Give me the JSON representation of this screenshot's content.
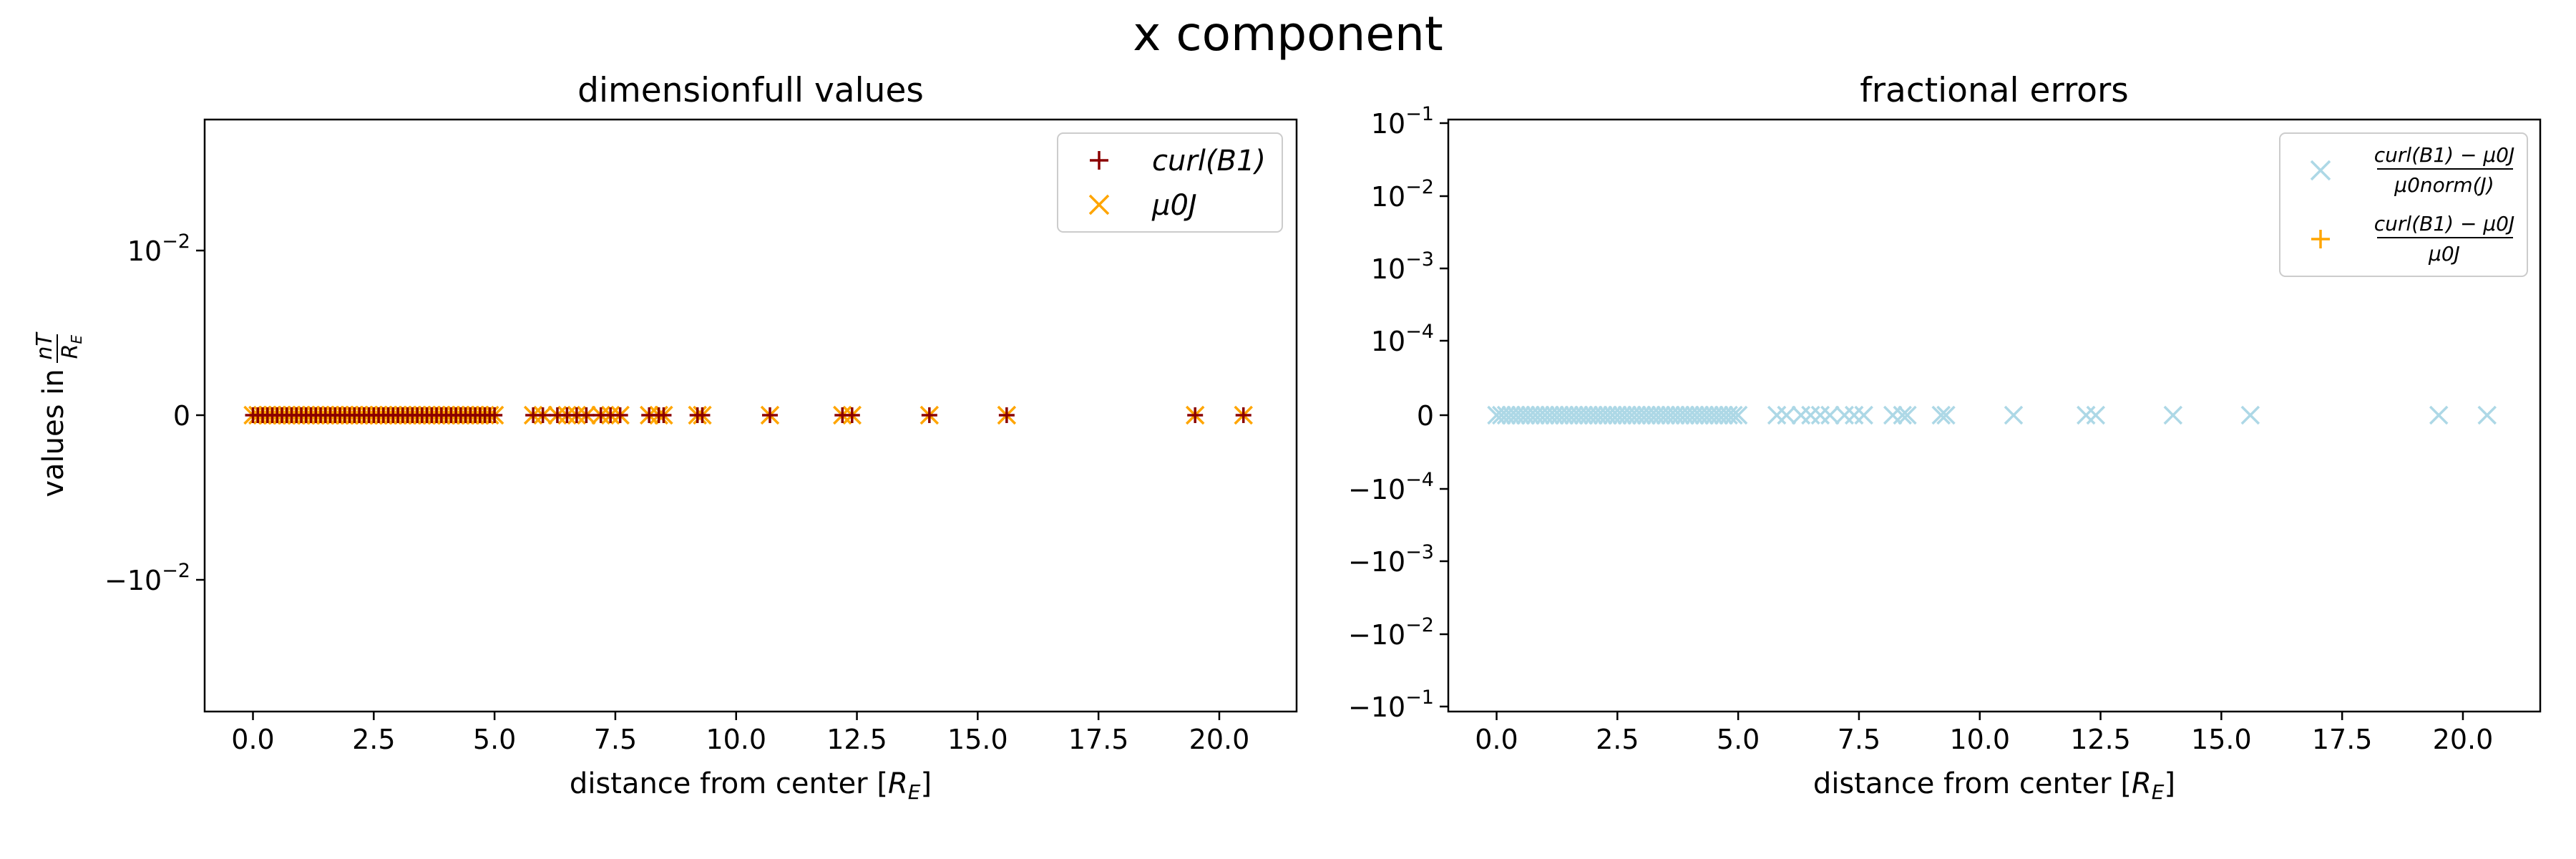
{
  "figure": {
    "suptitle": "x component"
  },
  "colors": {
    "curl": "#8b0000",
    "mu0J": "#ffa500",
    "frac_norm": "#add8e6",
    "frac_rel": "#ffa500"
  },
  "chart_data": [
    {
      "type": "scatter",
      "title": "dimensionfull values",
      "xlabel": "distance from center [R_E]",
      "ylabel": "values in nT/R_E",
      "xlim": [
        -1.0,
        21.6
      ],
      "ylim": [
        -0.018,
        0.018
      ],
      "yscale": "symlog",
      "x_ticks": [
        "0.0",
        "2.5",
        "5.0",
        "7.5",
        "10.0",
        "12.5",
        "15.0",
        "17.5",
        "20.0"
      ],
      "y_ticks": [
        "10^-2",
        "0",
        "-10^-2"
      ],
      "legend": {
        "position": "upper right",
        "entries": [
          "curl(B1)",
          "μ0J"
        ]
      },
      "series": [
        {
          "name": "curl(B1)",
          "marker": "plus",
          "x": [
            0.0,
            0.1,
            0.2,
            0.3,
            0.4,
            0.5,
            0.6,
            0.7,
            0.8,
            0.9,
            1.0,
            1.1,
            1.2,
            1.3,
            1.4,
            1.5,
            1.6,
            1.7,
            1.8,
            1.9,
            2.0,
            2.1,
            2.2,
            2.3,
            2.4,
            2.5,
            2.6,
            2.7,
            2.8,
            2.9,
            3.0,
            3.1,
            3.2,
            3.3,
            3.4,
            3.5,
            3.6,
            3.7,
            3.8,
            3.9,
            4.0,
            4.1,
            4.2,
            4.3,
            4.4,
            4.5,
            4.6,
            4.7,
            4.8,
            4.9,
            5.0,
            5.8,
            6.0,
            6.3,
            6.5,
            6.7,
            6.9,
            7.2,
            7.4,
            7.6,
            8.2,
            8.4,
            8.5,
            9.2,
            9.3,
            10.7,
            12.2,
            12.4,
            14.0,
            15.6,
            19.5,
            20.5
          ],
          "y": [
            0,
            0,
            0,
            0,
            0,
            0,
            0,
            0,
            0,
            0,
            0,
            0,
            0,
            0,
            0,
            0,
            0,
            0,
            0,
            0,
            0,
            0,
            0,
            0,
            0,
            0,
            0,
            0,
            0,
            0,
            0,
            0,
            0,
            0,
            0,
            0,
            0,
            0,
            0,
            0,
            0,
            0,
            0,
            0,
            0,
            0,
            0,
            0,
            0,
            0,
            0,
            0,
            0,
            0,
            0,
            0,
            0,
            0,
            0,
            0,
            0,
            0,
            0,
            0,
            0,
            0,
            0,
            0,
            0,
            0,
            0,
            0
          ]
        },
        {
          "name": "μ0J",
          "marker": "x",
          "x": [
            0.0,
            0.1,
            0.2,
            0.3,
            0.4,
            0.5,
            0.6,
            0.7,
            0.8,
            0.9,
            1.0,
            1.1,
            1.2,
            1.3,
            1.4,
            1.5,
            1.6,
            1.7,
            1.8,
            1.9,
            2.0,
            2.1,
            2.2,
            2.3,
            2.4,
            2.5,
            2.6,
            2.7,
            2.8,
            2.9,
            3.0,
            3.1,
            3.2,
            3.3,
            3.4,
            3.5,
            3.6,
            3.7,
            3.8,
            3.9,
            4.0,
            4.1,
            4.2,
            4.3,
            4.4,
            4.5,
            4.6,
            4.7,
            4.8,
            4.9,
            5.0,
            5.8,
            6.0,
            6.3,
            6.5,
            6.7,
            6.9,
            7.2,
            7.4,
            7.6,
            8.2,
            8.4,
            8.5,
            9.2,
            9.3,
            10.7,
            12.2,
            12.4,
            14.0,
            15.6,
            19.5,
            20.5
          ],
          "y": [
            0,
            0,
            0,
            0,
            0,
            0,
            0,
            0,
            0,
            0,
            0,
            0,
            0,
            0,
            0,
            0,
            0,
            0,
            0,
            0,
            0,
            0,
            0,
            0,
            0,
            0,
            0,
            0,
            0,
            0,
            0,
            0,
            0,
            0,
            0,
            0,
            0,
            0,
            0,
            0,
            0,
            0,
            0,
            0,
            0,
            0,
            0,
            0,
            0,
            0,
            0,
            0,
            0,
            0,
            0,
            0,
            0,
            0,
            0,
            0,
            0,
            0,
            0,
            0,
            0,
            0,
            0,
            0,
            0,
            0,
            0,
            0
          ]
        }
      ]
    },
    {
      "type": "scatter",
      "title": "fractional errors",
      "xlabel": "distance from center [R_E]",
      "xlim": [
        -1.0,
        21.6
      ],
      "yscale": "symlog",
      "y_ticks": [
        "10^-1",
        "10^-2",
        "10^-3",
        "10^-4",
        "0",
        "-10^-4",
        "-10^-3",
        "-10^-2",
        "-10^-1"
      ],
      "x_ticks": [
        "0.0",
        "2.5",
        "5.0",
        "7.5",
        "10.0",
        "12.5",
        "15.0",
        "17.5",
        "20.0"
      ],
      "legend": {
        "position": "upper right",
        "entries": [
          "(curl(B1) − μ0J) / (μ0norm(J))",
          "(curl(B1) − μ0J) / (μ0J)"
        ]
      },
      "series": [
        {
          "name": "(curl(B1) − μ0J) / (μ0norm(J))",
          "marker": "x",
          "x": [
            0.0,
            0.1,
            0.2,
            0.3,
            0.4,
            0.5,
            0.6,
            0.7,
            0.8,
            0.9,
            1.0,
            1.1,
            1.2,
            1.3,
            1.4,
            1.5,
            1.6,
            1.7,
            1.8,
            1.9,
            2.0,
            2.1,
            2.2,
            2.3,
            2.4,
            2.5,
            2.6,
            2.7,
            2.8,
            2.9,
            3.0,
            3.1,
            3.2,
            3.3,
            3.4,
            3.5,
            3.6,
            3.7,
            3.8,
            3.9,
            4.0,
            4.1,
            4.2,
            4.3,
            4.4,
            4.5,
            4.6,
            4.7,
            4.8,
            4.9,
            5.0,
            5.8,
            6.0,
            6.3,
            6.5,
            6.7,
            6.9,
            7.2,
            7.4,
            7.6,
            8.2,
            8.4,
            8.5,
            9.2,
            9.3,
            10.7,
            12.2,
            12.4,
            14.0,
            15.6,
            19.5,
            20.5
          ],
          "y": [
            0,
            0,
            0,
            0,
            0,
            0,
            0,
            0,
            0,
            0,
            0,
            0,
            0,
            0,
            0,
            0,
            0,
            0,
            0,
            0,
            0,
            0,
            0,
            0,
            0,
            0,
            0,
            0,
            0,
            0,
            0,
            0,
            0,
            0,
            0,
            0,
            0,
            0,
            0,
            0,
            0,
            0,
            0,
            0,
            0,
            0,
            0,
            0,
            0,
            0,
            0,
            0,
            0,
            0,
            0,
            0,
            0,
            0,
            0,
            0,
            0,
            0,
            0,
            0,
            0,
            0,
            0,
            0,
            0,
            0,
            0,
            0
          ]
        },
        {
          "name": "(curl(B1) − μ0J) / (μ0J)",
          "marker": "plus",
          "x": [],
          "y": []
        }
      ]
    }
  ]
}
